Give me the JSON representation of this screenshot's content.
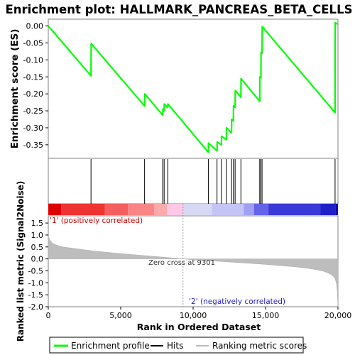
{
  "chart_data": {
    "type": "line",
    "title": "Enrichment plot: HALLMARK_PANCREAS_BETA_CELLS",
    "xlabel": "Rank in Ordered Dataset",
    "xlim": [
      0,
      20000
    ],
    "x_ticks": [
      "0",
      "5,000",
      "10,000",
      "15,000",
      "20,000"
    ],
    "es_panel": {
      "ylabel": "Enrichment score (ES)",
      "ylim": [
        -0.39,
        0.02
      ],
      "y_ticks": [
        "0.00",
        "-0.05",
        "-0.10",
        "-0.15",
        "-0.20",
        "-0.25",
        "-0.30",
        "-0.35"
      ],
      "series": [
        {
          "name": "Enrichment profile",
          "color": "#00ff00",
          "x": [
            0,
            2950,
            2960,
            6650,
            6660,
            7900,
            7910,
            8000,
            8010,
            8250,
            8260,
            11050,
            11060,
            11650,
            11660,
            11950,
            11960,
            12300,
            12310,
            12650,
            12660,
            12780,
            12790,
            12900,
            12910,
            13300,
            13310,
            14600,
            14610,
            14680,
            14690,
            14760,
            14770,
            19800,
            19810,
            20000
          ],
          "y": [
            0.0,
            -0.147,
            -0.052,
            -0.236,
            -0.2,
            -0.263,
            -0.245,
            -0.25,
            -0.23,
            -0.24,
            -0.23,
            -0.372,
            -0.345,
            -0.368,
            -0.342,
            -0.35,
            -0.325,
            -0.335,
            -0.3,
            -0.315,
            -0.275,
            -0.28,
            -0.235,
            -0.24,
            -0.19,
            -0.21,
            -0.155,
            -0.222,
            -0.15,
            -0.152,
            -0.078,
            -0.08,
            -0.002,
            -0.255,
            0.01,
            0.005
          ]
        }
      ]
    },
    "hits_panel": {
      "legend_name": "Hits",
      "hit_positions": [
        2950,
        6650,
        7900,
        8000,
        8250,
        11050,
        11650,
        11950,
        12300,
        12650,
        12780,
        12900,
        13300,
        14600,
        14680,
        14760,
        19800
      ]
    },
    "heatmap_bar": {
      "colors": [
        "#dd0000",
        "#ee3333",
        "#f45e5e",
        "#f98585",
        "#fcaaaa",
        "#ffc8e6",
        "#d8d8f5",
        "#c4c4f5",
        "#a0a0f0",
        "#6464ea",
        "#3a3ad6",
        "#2020c8",
        "#0c00b4"
      ],
      "breaks": [
        0,
        900,
        3900,
        5500,
        7300,
        8200,
        9300,
        11300,
        13500,
        14200,
        15200,
        18800,
        19850,
        20000
      ]
    },
    "metric_panel": {
      "ylabel": "Ranked list metric (Signal2Noise)",
      "legend_name": "Ranking metric scores",
      "ylim": [
        -2.0,
        1.8
      ],
      "y_ticks": [
        "1.5",
        "1.0",
        "0.5",
        "0.0",
        "-0.5",
        "-1.0",
        "-1.5",
        "-2.0"
      ],
      "x": [
        0,
        100,
        300,
        600,
        1000,
        2000,
        3000,
        4000,
        5000,
        6000,
        7000,
        8000,
        9301,
        10000,
        11000,
        12000,
        13000,
        14000,
        15000,
        16000,
        17000,
        18000,
        18500,
        19000,
        19300,
        19600,
        19800,
        19900,
        19960,
        20000
      ],
      "values": [
        0.95,
        0.8,
        0.65,
        0.57,
        0.5,
        0.42,
        0.34,
        0.28,
        0.22,
        0.17,
        0.12,
        0.07,
        0.0,
        -0.04,
        -0.08,
        -0.11,
        -0.15,
        -0.19,
        -0.23,
        -0.28,
        -0.33,
        -0.4,
        -0.45,
        -0.52,
        -0.58,
        -0.68,
        -0.82,
        -1.05,
        -1.4,
        -2.0
      ],
      "zero_cross_label": "Zero cross at 9301",
      "zero_cross_x": 9301,
      "pos_label": "'1' (positively correlated)",
      "neg_label": "'2' (negatively correlated)"
    }
  },
  "legend": {
    "enrichment_label": "Enrichment profile",
    "hits_label": "Hits",
    "metric_label": "Ranking metric scores"
  }
}
